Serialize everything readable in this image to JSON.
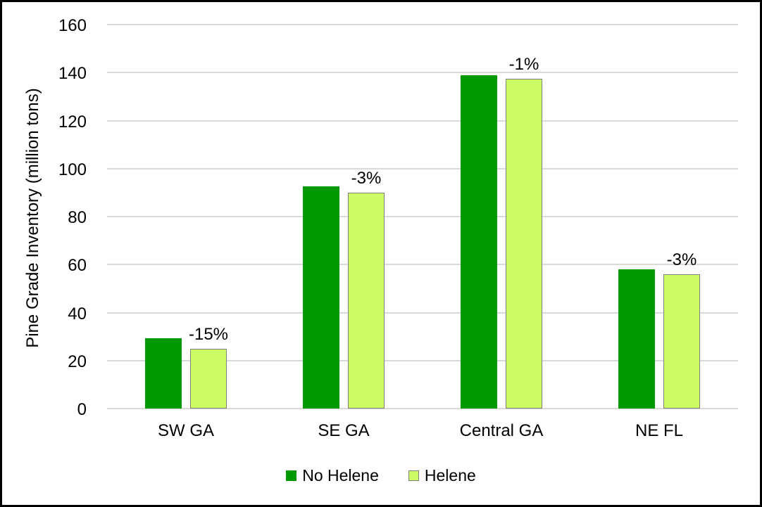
{
  "chart_data": {
    "type": "bar",
    "ylabel": "Pine Grade Inventory (million tons)",
    "xlabel": "",
    "ylim": [
      0,
      160
    ],
    "ytick_interval": 20,
    "yticks": [
      0,
      20,
      40,
      60,
      80,
      100,
      120,
      140,
      160
    ],
    "grid": true,
    "categories": [
      "SW GA",
      "SE GA",
      "Central GA",
      "NE FL"
    ],
    "series": [
      {
        "name": "No Helene",
        "color": "#009A00",
        "border": "none",
        "values": [
          29.4,
          92.7,
          138.8,
          57.9
        ]
      },
      {
        "name": "Helene",
        "color": "#CCFB66",
        "border": "#808080",
        "values": [
          25.0,
          90.1,
          137.5,
          56.1
        ]
      }
    ],
    "bar_labels": {
      "above_series": "Helene",
      "values": [
        "-15%",
        "-3%",
        "-1%",
        "-3%"
      ]
    },
    "legend_position": "bottom-center",
    "colors": {
      "gridline": "#D9D9D9",
      "text": "#000000",
      "background": "#FFFFFF",
      "frame_border": "#000000"
    }
  }
}
